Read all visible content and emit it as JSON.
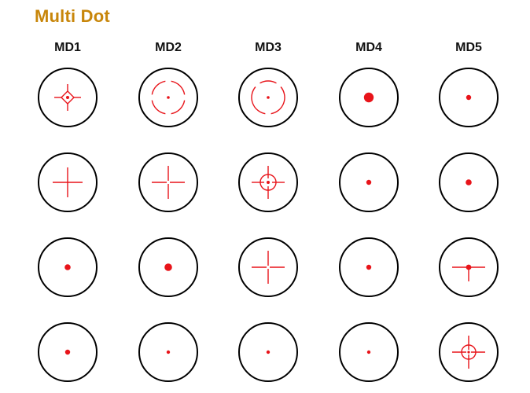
{
  "title": "Multi Dot",
  "columns": [
    {
      "label": "MD1",
      "reticles": [
        {
          "icon": "diamond-crosshair-reticle-icon"
        },
        {
          "icon": "crosshair-reticle-icon"
        },
        {
          "icon": "dot-reticle-icon",
          "dot": "medium"
        },
        {
          "icon": "dot-reticle-icon",
          "dot": "small"
        }
      ]
    },
    {
      "label": "MD2",
      "reticles": [
        {
          "icon": "segmented-circle-dot-reticle-icon"
        },
        {
          "icon": "gap-crosshair-reticle-icon"
        },
        {
          "icon": "dot-reticle-icon",
          "dot": "large"
        },
        {
          "icon": "dot-reticle-icon",
          "dot": "tiny"
        }
      ]
    },
    {
      "label": "MD3",
      "reticles": [
        {
          "icon": "broken-circle-dot-reticle-icon"
        },
        {
          "icon": "circle-crosshair-dot-reticle-icon"
        },
        {
          "icon": "gap-crosshair-reticle-icon"
        },
        {
          "icon": "dot-reticle-icon",
          "dot": "tiny"
        }
      ]
    },
    {
      "label": "MD4",
      "reticles": [
        {
          "icon": "dot-reticle-icon",
          "dot": "xlarge"
        },
        {
          "icon": "dot-reticle-icon",
          "dot": "small"
        },
        {
          "icon": "dot-reticle-icon",
          "dot": "small"
        },
        {
          "icon": "dot-reticle-icon",
          "dot": "tiny"
        }
      ]
    },
    {
      "label": "MD5",
      "reticles": [
        {
          "icon": "dot-reticle-icon",
          "dot": "small"
        },
        {
          "icon": "dot-reticle-icon",
          "dot": "medium"
        },
        {
          "icon": "t-crosshair-dot-reticle-icon"
        },
        {
          "icon": "circle-gap-crosshair-reticle-icon"
        }
      ]
    }
  ],
  "colors": {
    "title": "#c8860a",
    "outline": "#000000",
    "reticle": "#e8141a"
  }
}
